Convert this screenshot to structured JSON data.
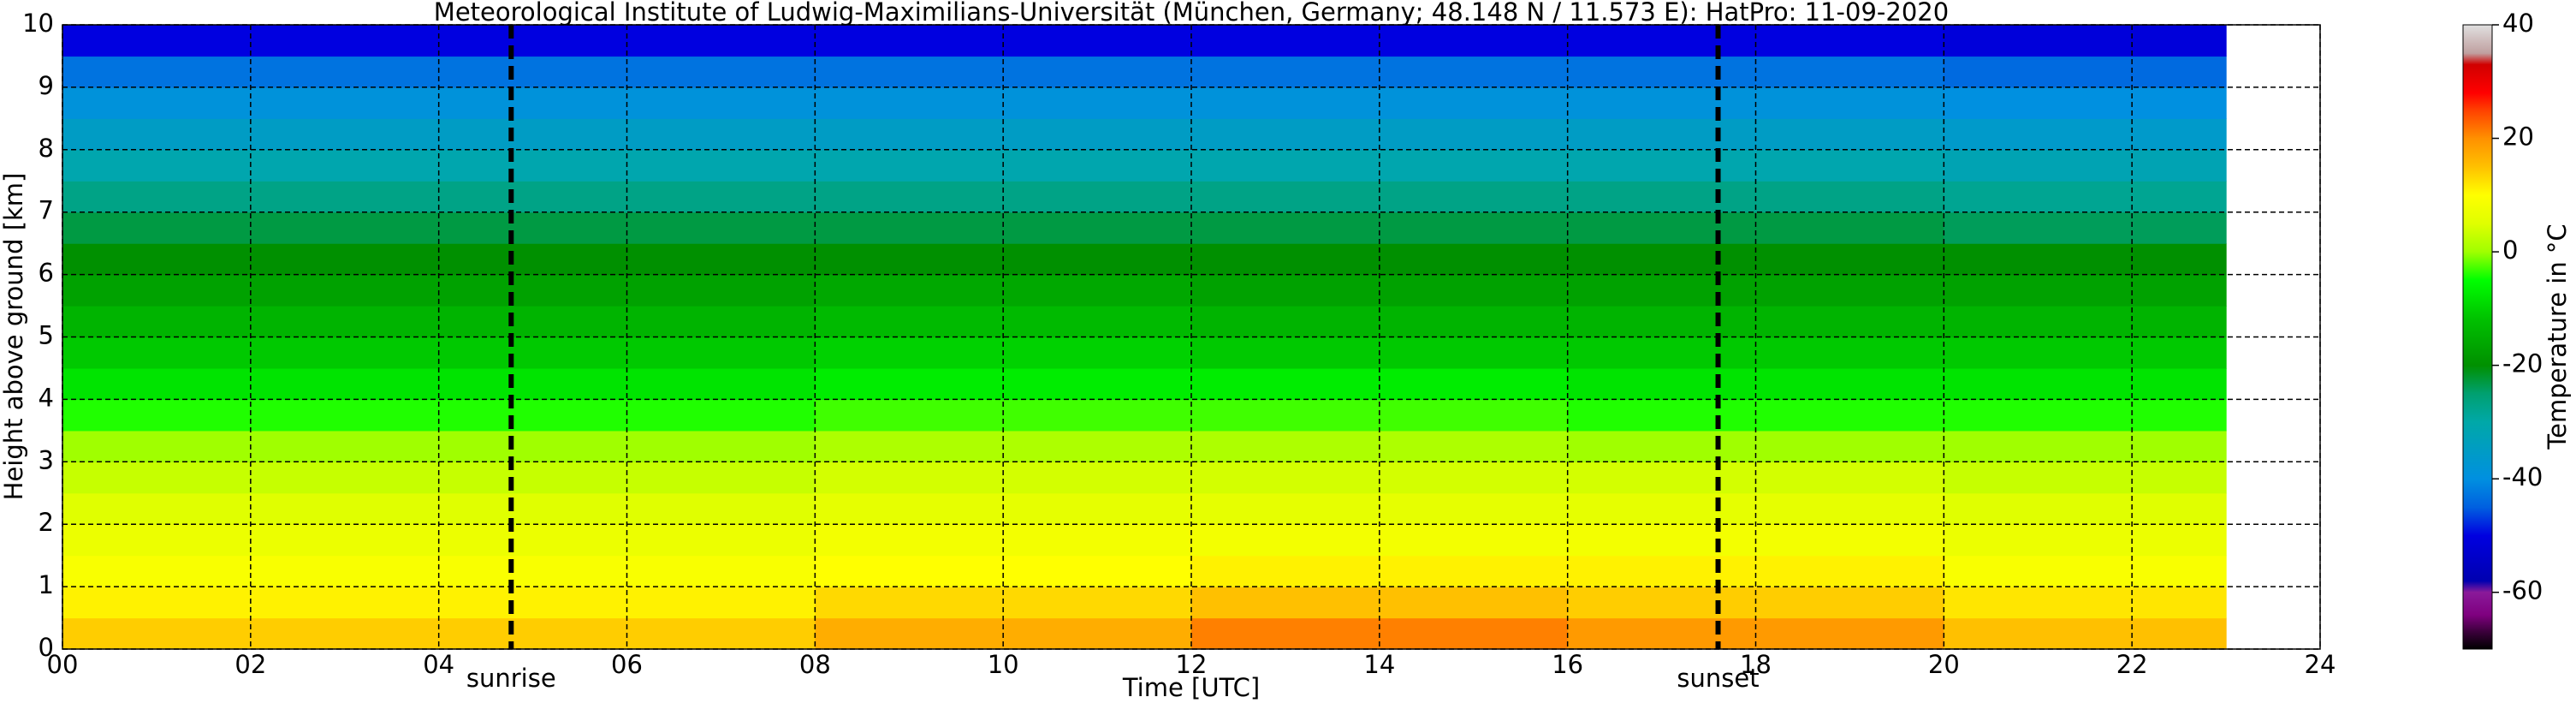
{
  "chart_data": {
    "type": "heatmap",
    "title": "Meteorological Institute of Ludwig-Maximilians-Universität (München, Germany; 48.148 N / 11.573 E):    HatPro: 11-09-2020",
    "xlabel": "Time [UTC]",
    "ylabel": "Height above ground [km]",
    "x_bins": [
      0,
      4,
      8,
      12,
      16,
      20,
      23
    ],
    "y_bins": [
      0,
      0.5,
      1,
      1.5,
      2,
      2.5,
      3,
      3.5,
      4,
      4.5,
      5,
      5.5,
      6,
      6.5,
      7,
      7.5,
      8,
      8.5,
      9,
      9.5,
      10
    ],
    "values": [
      [
        14,
        14,
        17,
        21,
        19,
        15
      ],
      [
        11,
        11,
        13,
        15,
        14,
        12
      ],
      [
        9,
        9,
        10,
        11,
        11,
        9
      ],
      [
        7,
        7,
        8,
        8,
        8,
        7
      ],
      [
        5,
        5,
        6,
        6,
        6,
        5
      ],
      [
        3,
        3,
        4,
        4,
        4,
        3
      ],
      [
        0,
        0,
        1,
        1,
        0,
        0
      ],
      [
        -4,
        -4,
        -3,
        -3,
        -4,
        -4
      ],
      [
        -8,
        -8,
        -7,
        -7,
        -8,
        -8
      ],
      [
        -11,
        -11,
        -10,
        -11,
        -11,
        -11
      ],
      [
        -14,
        -14,
        -13,
        -14,
        -14,
        -14
      ],
      [
        -17,
        -17,
        -16,
        -17,
        -17,
        -17
      ],
      [
        -20,
        -20,
        -20,
        -20,
        -20,
        -20
      ],
      [
        -23,
        -23,
        -23,
        -23,
        -23,
        -24
      ],
      [
        -27,
        -27,
        -27,
        -27,
        -27,
        -28
      ],
      [
        -31,
        -31,
        -31,
        -31,
        -31,
        -32
      ],
      [
        -35,
        -35,
        -35,
        -35,
        -35,
        -36
      ],
      [
        -39,
        -39,
        -39,
        -39,
        -39,
        -40
      ],
      [
        -43,
        -43,
        -43,
        -43,
        -43,
        -44
      ],
      [
        -50,
        -50,
        -50,
        -50,
        -50,
        -51
      ]
    ],
    "xlim": [
      0,
      24
    ],
    "xticks": [
      {
        "value": 0,
        "label": "00"
      },
      {
        "value": 2,
        "label": "02"
      },
      {
        "value": 4,
        "label": "04"
      },
      {
        "value": 6,
        "label": "06"
      },
      {
        "value": 8,
        "label": "08"
      },
      10,
      12,
      14,
      16,
      18,
      20,
      22,
      24
    ],
    "ylim": [
      0,
      10
    ],
    "yticks": [
      0,
      1,
      2,
      3,
      4,
      5,
      6,
      7,
      8,
      9,
      10
    ],
    "grid": true,
    "annotations": [
      {
        "text": "sunrise",
        "x": 4.77
      },
      {
        "text": "sunset",
        "x": 17.6
      }
    ],
    "colorbar": {
      "label": "Temperature in °C",
      "clim": [
        -70,
        40
      ],
      "ticks": [
        -60,
        -40,
        -20,
        0,
        20,
        40
      ],
      "colorscale": [
        [
          -70,
          "#000000"
        ],
        [
          -67,
          "#3a003a"
        ],
        [
          -64,
          "#7f007f"
        ],
        [
          -60,
          "#8a1a9a"
        ],
        [
          -58,
          "#0000b0"
        ],
        [
          -50,
          "#0000e0"
        ],
        [
          -45,
          "#0060e0"
        ],
        [
          -40,
          "#0090e0"
        ],
        [
          -30,
          "#00a8a8"
        ],
        [
          -25,
          "#00a070"
        ],
        [
          -20,
          "#009000"
        ],
        [
          -12,
          "#00c000"
        ],
        [
          -5,
          "#00ff00"
        ],
        [
          0,
          "#a0ff00"
        ],
        [
          5,
          "#e0ff00"
        ],
        [
          10,
          "#ffff00"
        ],
        [
          15,
          "#ffc000"
        ],
        [
          20,
          "#ff9000"
        ],
        [
          25,
          "#ff4000"
        ],
        [
          28,
          "#ff0000"
        ],
        [
          33,
          "#d00000"
        ],
        [
          35,
          "#c0a0a0"
        ],
        [
          40,
          "#e0e0e0"
        ]
      ]
    }
  }
}
